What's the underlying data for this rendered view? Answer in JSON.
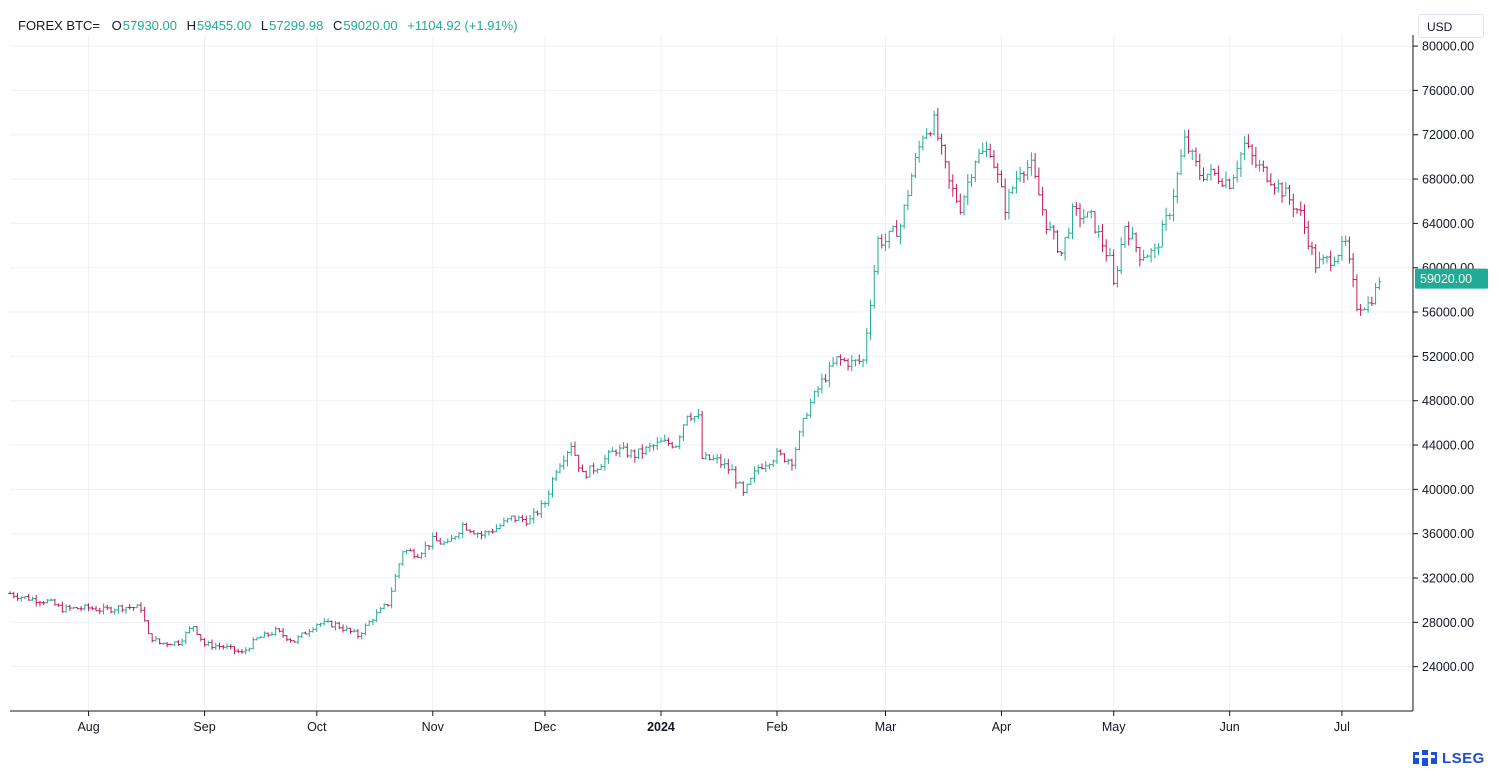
{
  "header": {
    "symbol": "FOREX BTC=",
    "open_label": "O",
    "open": "57930.00",
    "high_label": "H",
    "high": "59455.00",
    "low_label": "L",
    "low": "57299.98",
    "close_label": "C",
    "close": "59020.00",
    "change": "+1104.92 (+1.91%)"
  },
  "currency": "USD",
  "brand": "LSEG",
  "colors": {
    "up": "#22ab94",
    "down": "#c2185b",
    "grid": "#eef0f3",
    "axis": "#131722",
    "price_tag": "#22ab94"
  },
  "chart_data": {
    "type": "ohlc",
    "title": "",
    "ylabel": "USD",
    "ylim": [
      20000,
      81000
    ],
    "y_ticks": [
      "80000.00",
      "76000.00",
      "72000.00",
      "68000.00",
      "64000.00",
      "60000.00",
      "56000.00",
      "52000.00",
      "48000.00",
      "44000.00",
      "40000.00",
      "36000.00",
      "32000.00",
      "28000.00",
      "24000.00"
    ],
    "x_range": [
      "2023-07-11",
      "2024-07-20"
    ],
    "x_ticks": [
      {
        "label": "Aug",
        "date": "2023-08-01",
        "bold": false
      },
      {
        "label": "Sep",
        "date": "2023-09-01",
        "bold": false
      },
      {
        "label": "Oct",
        "date": "2023-10-01",
        "bold": false
      },
      {
        "label": "Nov",
        "date": "2023-11-01",
        "bold": false
      },
      {
        "label": "Dec",
        "date": "2023-12-01",
        "bold": false
      },
      {
        "label": "2024",
        "date": "2024-01-01",
        "bold": true
      },
      {
        "label": "Feb",
        "date": "2024-02-01",
        "bold": false
      },
      {
        "label": "Mar",
        "date": "2024-03-01",
        "bold": false
      },
      {
        "label": "Apr",
        "date": "2024-04-01",
        "bold": false
      },
      {
        "label": "May",
        "date": "2024-05-01",
        "bold": false
      },
      {
        "label": "Jun",
        "date": "2024-06-01",
        "bold": false
      },
      {
        "label": "Jul",
        "date": "2024-07-01",
        "bold": false
      }
    ],
    "last_price": "59020.00",
    "closes": [
      {
        "date": "2023-07-11",
        "close": 30600
      },
      {
        "date": "2023-07-14",
        "close": 30300
      },
      {
        "date": "2023-07-17",
        "close": 30100
      },
      {
        "date": "2023-07-21",
        "close": 29900
      },
      {
        "date": "2023-07-25",
        "close": 29200
      },
      {
        "date": "2023-08-01",
        "close": 29300
      },
      {
        "date": "2023-08-05",
        "close": 29100
      },
      {
        "date": "2023-08-10",
        "close": 29400
      },
      {
        "date": "2023-08-15",
        "close": 29300
      },
      {
        "date": "2023-08-17",
        "close": 26800
      },
      {
        "date": "2023-08-20",
        "close": 26100
      },
      {
        "date": "2023-08-25",
        "close": 26200
      },
      {
        "date": "2023-08-29",
        "close": 27700
      },
      {
        "date": "2023-09-01",
        "close": 26000
      },
      {
        "date": "2023-09-06",
        "close": 25800
      },
      {
        "date": "2023-09-11",
        "close": 25200
      },
      {
        "date": "2023-09-15",
        "close": 26500
      },
      {
        "date": "2023-09-20",
        "close": 27200
      },
      {
        "date": "2023-09-25",
        "close": 26300
      },
      {
        "date": "2023-10-01",
        "close": 27900
      },
      {
        "date": "2023-10-06",
        "close": 27800
      },
      {
        "date": "2023-10-12",
        "close": 26800
      },
      {
        "date": "2023-10-16",
        "close": 28400
      },
      {
        "date": "2023-10-20",
        "close": 29700
      },
      {
        "date": "2023-10-24",
        "close": 34500
      },
      {
        "date": "2023-10-28",
        "close": 34200
      },
      {
        "date": "2023-11-01",
        "close": 35400
      },
      {
        "date": "2023-11-05",
        "close": 35000
      },
      {
        "date": "2023-11-09",
        "close": 36800
      },
      {
        "date": "2023-11-14",
        "close": 35900
      },
      {
        "date": "2023-11-18",
        "close": 36500
      },
      {
        "date": "2023-11-22",
        "close": 37400
      },
      {
        "date": "2023-11-27",
        "close": 37200
      },
      {
        "date": "2023-12-01",
        "close": 38800
      },
      {
        "date": "2023-12-04",
        "close": 41900
      },
      {
        "date": "2023-12-08",
        "close": 44100
      },
      {
        "date": "2023-12-11",
        "close": 41300
      },
      {
        "date": "2023-12-15",
        "close": 42100
      },
      {
        "date": "2023-12-20",
        "close": 43600
      },
      {
        "date": "2023-12-25",
        "close": 43100
      },
      {
        "date": "2024-01-01",
        "close": 44200
      },
      {
        "date": "2024-01-05",
        "close": 44100
      },
      {
        "date": "2024-01-08",
        "close": 46900
      },
      {
        "date": "2024-01-11",
        "close": 46400
      },
      {
        "date": "2024-01-12",
        "close": 42800
      },
      {
        "date": "2024-01-16",
        "close": 42600
      },
      {
        "date": "2024-01-20",
        "close": 41600
      },
      {
        "date": "2024-01-23",
        "close": 39500
      },
      {
        "date": "2024-01-27",
        "close": 42000
      },
      {
        "date": "2024-02-01",
        "close": 43100
      },
      {
        "date": "2024-02-05",
        "close": 42600
      },
      {
        "date": "2024-02-09",
        "close": 47100
      },
      {
        "date": "2024-02-13",
        "close": 49700
      },
      {
        "date": "2024-02-17",
        "close": 51700
      },
      {
        "date": "2024-02-21",
        "close": 51400
      },
      {
        "date": "2024-02-24",
        "close": 51600
      },
      {
        "date": "2024-02-28",
        "close": 62500
      },
      {
        "date": "2024-03-01",
        "close": 62400
      },
      {
        "date": "2024-03-05",
        "close": 63800
      },
      {
        "date": "2024-03-08",
        "close": 68300
      },
      {
        "date": "2024-03-11",
        "close": 72100
      },
      {
        "date": "2024-03-14",
        "close": 73100
      },
      {
        "date": "2024-03-18",
        "close": 67600
      },
      {
        "date": "2024-03-21",
        "close": 65500
      },
      {
        "date": "2024-03-25",
        "close": 69900
      },
      {
        "date": "2024-03-29",
        "close": 70700
      },
      {
        "date": "2024-04-02",
        "close": 65500
      },
      {
        "date": "2024-04-06",
        "close": 69000
      },
      {
        "date": "2024-04-09",
        "close": 69100
      },
      {
        "date": "2024-04-13",
        "close": 64000
      },
      {
        "date": "2024-04-17",
        "close": 61300
      },
      {
        "date": "2024-04-20",
        "close": 64900
      },
      {
        "date": "2024-04-25",
        "close": 64500
      },
      {
        "date": "2024-04-30",
        "close": 60600
      },
      {
        "date": "2024-05-01",
        "close": 58300
      },
      {
        "date": "2024-05-04",
        "close": 63900
      },
      {
        "date": "2024-05-08",
        "close": 61200
      },
      {
        "date": "2024-05-12",
        "close": 61400
      },
      {
        "date": "2024-05-16",
        "close": 65200
      },
      {
        "date": "2024-05-20",
        "close": 71400
      },
      {
        "date": "2024-05-24",
        "close": 68500
      },
      {
        "date": "2024-05-28",
        "close": 68400
      },
      {
        "date": "2024-06-01",
        "close": 67700
      },
      {
        "date": "2024-06-05",
        "close": 71100
      },
      {
        "date": "2024-06-08",
        "close": 69300
      },
      {
        "date": "2024-06-12",
        "close": 68100
      },
      {
        "date": "2024-06-16",
        "close": 66600
      },
      {
        "date": "2024-06-20",
        "close": 64800
      },
      {
        "date": "2024-06-24",
        "close": 60300
      },
      {
        "date": "2024-06-28",
        "close": 60800
      },
      {
        "date": "2024-07-02",
        "close": 62100
      },
      {
        "date": "2024-07-05",
        "close": 56600
      },
      {
        "date": "2024-07-08",
        "close": 56700
      },
      {
        "date": "2024-07-10",
        "close": 57900
      },
      {
        "date": "2024-07-11",
        "close": 59020
      }
    ]
  }
}
